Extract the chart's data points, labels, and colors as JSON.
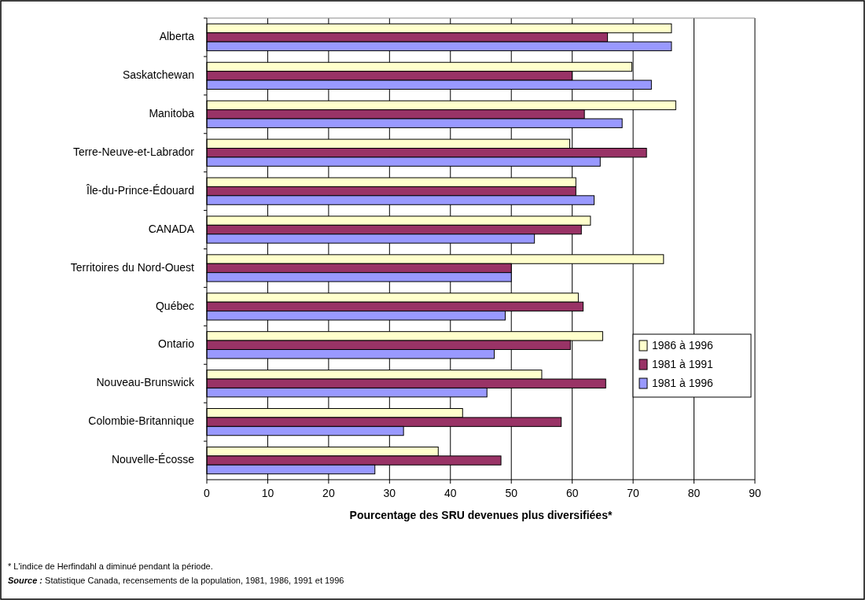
{
  "chart_data": {
    "type": "bar",
    "orientation": "horizontal",
    "categories": [
      "Alberta",
      "Saskatchewan",
      "Manitoba",
      "Terre-Neuve-et-Labrador",
      "Île-du-Prince-Édouard",
      "CANADA",
      "Territoires du Nord-Ouest",
      "Québec",
      "Ontario",
      "Nouveau-Brunswick",
      "Colombie-Britannique",
      "Nouvelle-Écosse"
    ],
    "series": [
      {
        "name": "1986 à 1996",
        "color": "#ffffcc",
        "values": [
          76.3,
          69.8,
          77,
          59.6,
          60.6,
          63,
          75,
          61,
          65,
          55,
          42,
          38
        ]
      },
      {
        "name": "1981 à 1991",
        "color": "#993366",
        "values": [
          65.8,
          60,
          62,
          72.2,
          60.6,
          61.5,
          50,
          61.8,
          59.7,
          65.5,
          58.2,
          48.3
        ]
      },
      {
        "name": "1981 à 1996",
        "color": "#9999ff",
        "values": [
          76.3,
          73,
          68.2,
          64.6,
          63.6,
          53.8,
          50,
          49,
          47.2,
          46,
          32.3,
          27.6
        ]
      }
    ],
    "xlim": [
      0,
      90
    ],
    "xticks": [
      0,
      10,
      20,
      30,
      40,
      50,
      60,
      70,
      80,
      90
    ],
    "xlabel": "Pourcentage des SRU devenues plus diversifiées*",
    "grid": "x",
    "legend": "right",
    "annotations": [
      "* L'indice de Herfindahl a diminué pendant la période.",
      "Source : Statistique Canada, recensements de la population, 1981, 1986, 1991 et 1996"
    ]
  }
}
